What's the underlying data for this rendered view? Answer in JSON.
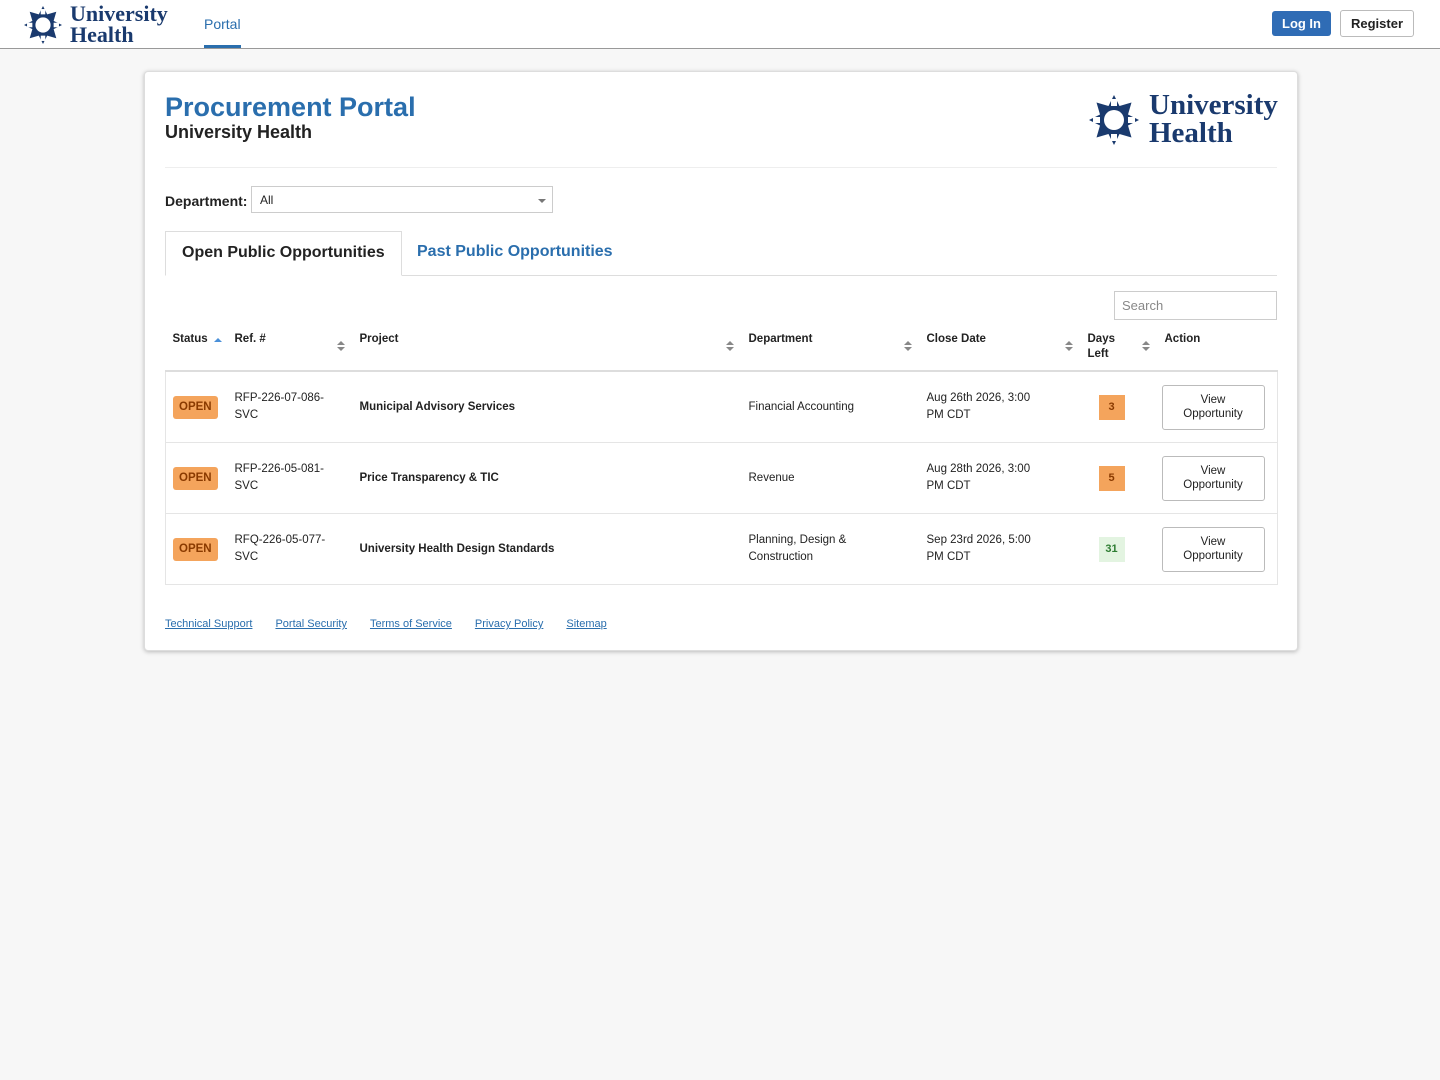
{
  "nav": {
    "logo": [
      "University",
      "Health"
    ],
    "links": [
      "Portal"
    ],
    "buttons": [
      "Log In",
      "Register"
    ]
  },
  "header": {
    "title": "Procurement Portal",
    "subtitle": "University Health",
    "logo": [
      "University",
      "Health"
    ]
  },
  "filter": {
    "label": "Department:",
    "value": "All"
  },
  "tabs": [
    "Open Public Opportunities",
    "Past Public Opportunities"
  ],
  "search": {
    "placeholder": "Search"
  },
  "table": {
    "columns": [
      "Status",
      "Ref. #",
      "Project",
      "Department",
      "Close Date",
      "Days Left",
      "Action"
    ],
    "rows": [
      [
        "OPEN",
        "RFP-226-07-086-SVC",
        "Municipal Advisory Services",
        "Financial Accounting",
        "Aug 26th 2026, 3:00 PM CDT",
        3,
        "View Opportunity"
      ],
      [
        "OPEN",
        "RFP-226-05-081-SVC",
        "Price Transparency & TIC",
        "Revenue",
        "Aug 28th 2026, 3:00 PM CDT",
        5,
        "View Opportunity"
      ],
      [
        "OPEN",
        "RFQ-226-05-077-SVC",
        "University Health Design Standards",
        "Planning, Design & Construction",
        "Sep 23rd 2026, 5:00 PM CDT",
        31,
        "View Opportunity"
      ]
    ]
  },
  "footer": {
    "links": [
      "Technical Support",
      "Portal Security",
      "Terms of Service",
      "Privacy Policy",
      "Sitemap"
    ]
  }
}
